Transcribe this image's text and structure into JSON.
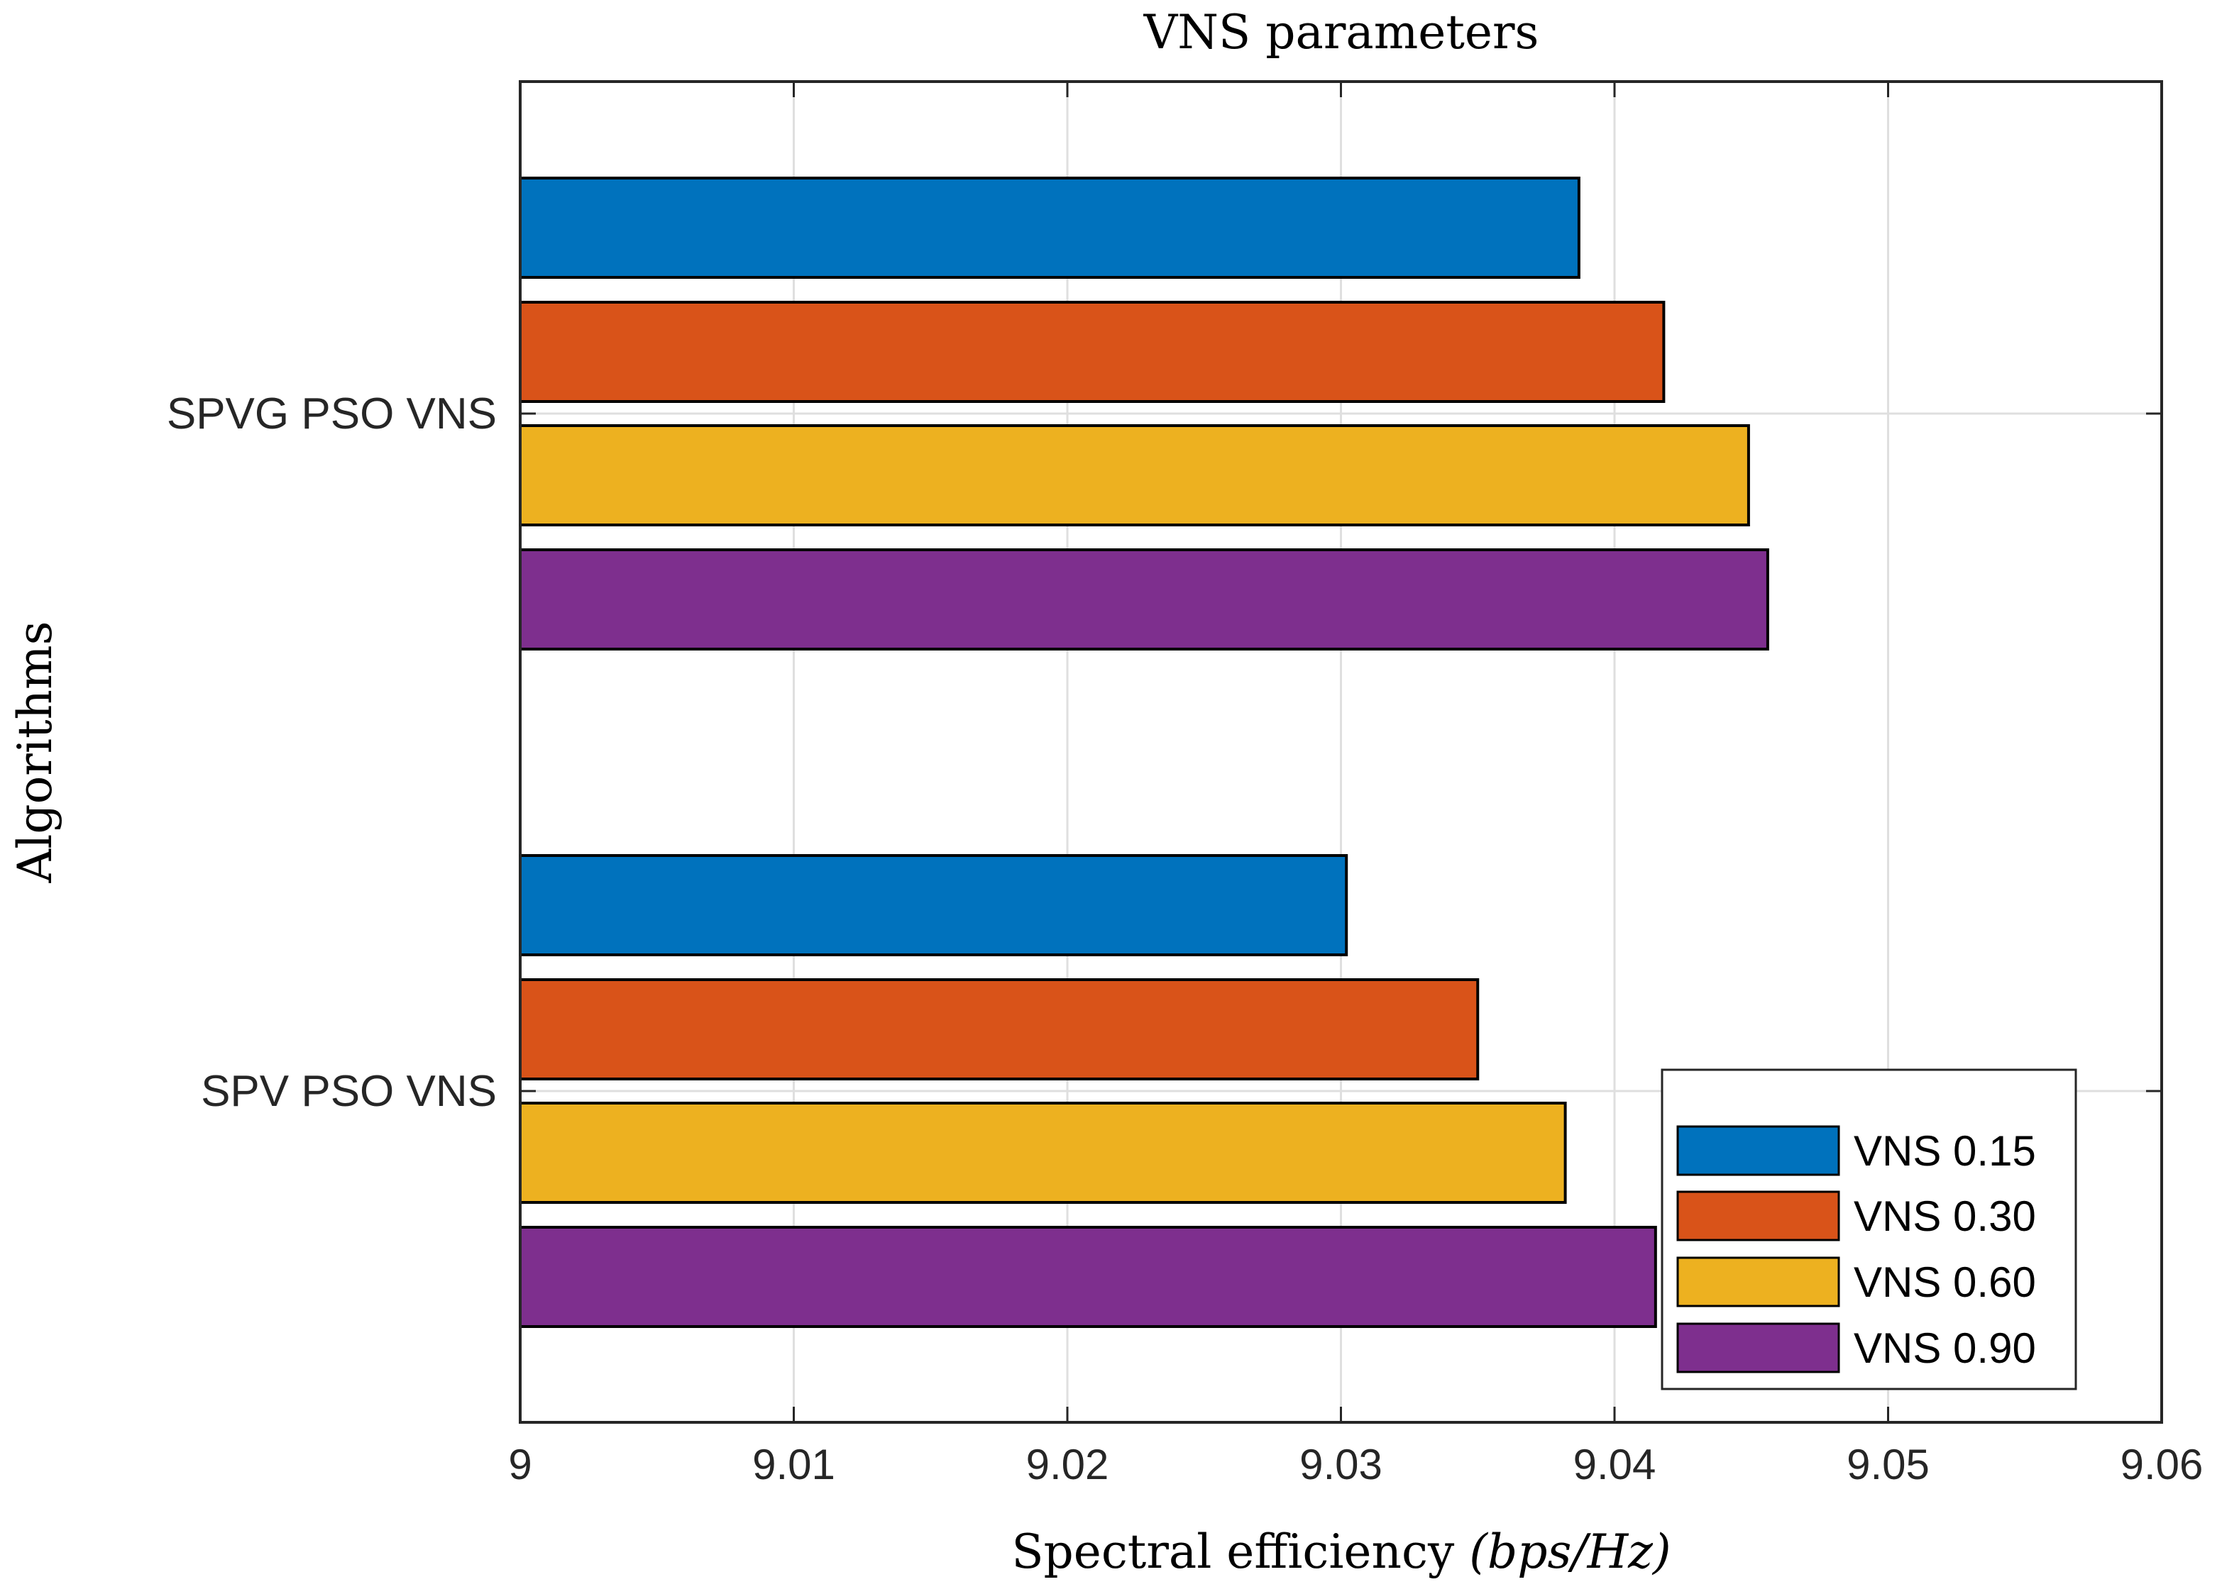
{
  "chart_data": {
    "type": "bar",
    "orientation": "horizontal",
    "title": "VNS parameters",
    "xlabel": "Spectral efficiency (bps/Hz)",
    "xlabel_parts": {
      "text": "Spectral efficiency ",
      "math": "(bps/Hz)"
    },
    "ylabel": "Algorithms",
    "categories": [
      "SPV PSO VNS",
      "SPVG PSO VNS"
    ],
    "xlim": [
      9,
      9.06
    ],
    "xticks": [
      "9",
      "9.01",
      "9.02",
      "9.03",
      "9.04",
      "9.05",
      "9.06"
    ],
    "grid": true,
    "legend_position": "bottom-right",
    "series": [
      {
        "name": "VNS 0.15",
        "color": "#0072BD",
        "values": [
          9.0302,
          9.0387
        ]
      },
      {
        "name": "VNS 0.30",
        "color": "#D95319",
        "values": [
          9.035,
          9.0418
        ]
      },
      {
        "name": "VNS 0.60",
        "color": "#EDB120",
        "values": [
          9.0382,
          9.0449
        ]
      },
      {
        "name": "VNS 0.90",
        "color": "#7E2F8E",
        "values": [
          9.0415,
          9.0456
        ]
      }
    ]
  }
}
